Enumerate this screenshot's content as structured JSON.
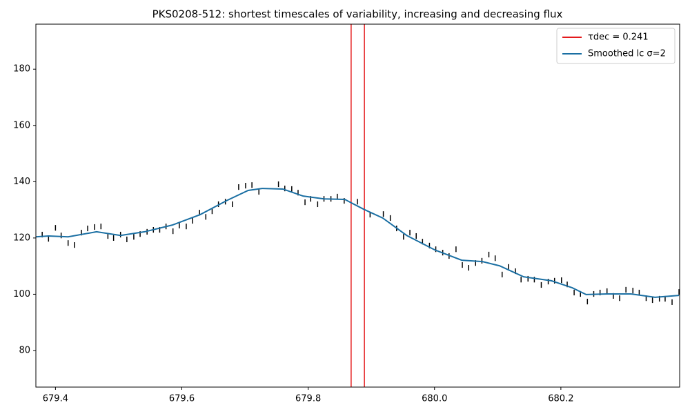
{
  "chart_data": {
    "type": "errorbar",
    "title": "PKS0208-512: shortest timescales of variability, increasing and decreasing flux",
    "xlim": [
      679.369,
      680.388
    ],
    "ylim": [
      67,
      196
    ],
    "xticks": [
      679.4,
      679.6,
      679.8,
      {
        "value": 680,
        "label": "680.0"
      },
      680.2
    ],
    "yticks": [
      80,
      100,
      120,
      140,
      160,
      180
    ],
    "grid": false,
    "legend": "upper right",
    "error_color": "#000000",
    "error": 1,
    "x": [
      679.379,
      679.389,
      679.4,
      679.409,
      679.42,
      679.43,
      679.441,
      679.451,
      679.462,
      679.472,
      679.483,
      679.492,
      679.503,
      679.513,
      679.524,
      679.534,
      679.545,
      679.555,
      679.565,
      679.575,
      679.586,
      679.596,
      679.607,
      679.617,
      679.628,
      679.638,
      679.648,
      679.658,
      679.669,
      679.68,
      679.69,
      679.701,
      679.711,
      679.722,
      679.753,
      679.763,
      679.774,
      679.784,
      679.795,
      679.804,
      679.815,
      679.825,
      679.836,
      679.846,
      679.857,
      679.878,
      679.898,
      679.919,
      679.93,
      679.94,
      679.951,
      679.961,
      679.971,
      679.981,
      679.992,
      680.002,
      680.013,
      680.023,
      680.034,
      680.044,
      680.054,
      680.065,
      680.075,
      680.086,
      680.096,
      680.107,
      680.117,
      680.128,
      680.137,
      680.148,
      680.158,
      680.169,
      680.18,
      680.19,
      680.201,
      680.21,
      680.221,
      680.231,
      680.242,
      680.252,
      680.262,
      680.273,
      680.283,
      680.293,
      680.303,
      680.314,
      680.324,
      680.335,
      680.345,
      680.356,
      680.365,
      680.376,
      680.387
    ],
    "values": [
      121.2,
      119.7,
      123.6,
      120.9,
      118.2,
      117.5,
      121.9,
      123.4,
      123.9,
      124.1,
      120.7,
      120.0,
      121.2,
      119.5,
      120.4,
      121.4,
      122.2,
      122.9,
      122.9,
      124.1,
      122.4,
      124.4,
      124.1,
      126.1,
      129.0,
      127.5,
      129.5,
      132.0,
      132.9,
      132.0,
      138.1,
      138.6,
      138.8,
      136.4,
      139.1,
      137.6,
      137.4,
      136.1,
      132.7,
      133.9,
      132.0,
      133.9,
      133.9,
      134.7,
      133.2,
      132.9,
      128.3,
      128.5,
      127.1,
      123.4,
      120.4,
      121.9,
      120.7,
      118.7,
      117.3,
      116.0,
      114.8,
      113.6,
      116.0,
      110.4,
      109.4,
      111.1,
      111.9,
      114.1,
      112.8,
      107.0,
      109.7,
      108.2,
      105.2,
      105.5,
      105.2,
      103.3,
      104.5,
      104.8,
      105.0,
      103.5,
      100.6,
      100.1,
      97.4,
      100.1,
      100.6,
      101.1,
      99.4,
      98.6,
      101.6,
      101.3,
      100.6,
      98.6,
      97.9,
      98.4,
      98.4,
      97.2,
      100.8
    ],
    "vlines": {
      "name": "τdec = 0.241",
      "color": "#e41a1c",
      "values": [
        679.868,
        679.889
      ]
    },
    "series": [
      {
        "name": "Smoothed lc σ=2",
        "color": "#1a6fa3",
        "x": [
          679.369,
          679.389,
          679.42,
          679.465,
          679.503,
          679.541,
          679.585,
          679.629,
          679.672,
          679.705,
          679.727,
          679.76,
          679.792,
          679.825,
          679.858,
          679.888,
          679.918,
          679.956,
          680.0,
          680.043,
          680.076,
          680.103,
          680.141,
          680.185,
          680.218,
          680.24,
          680.273,
          680.311,
          680.349,
          680.387
        ],
        "values": [
          120.4,
          120.7,
          120.4,
          122.2,
          120.9,
          122.2,
          124.6,
          128.3,
          133.4,
          136.9,
          137.6,
          137.4,
          134.9,
          133.9,
          133.7,
          130.2,
          127.1,
          120.9,
          115.8,
          112.1,
          111.6,
          110.1,
          106.2,
          104.8,
          102.3,
          99.9,
          100.1,
          100.1,
          98.9,
          99.6
        ]
      }
    ]
  }
}
